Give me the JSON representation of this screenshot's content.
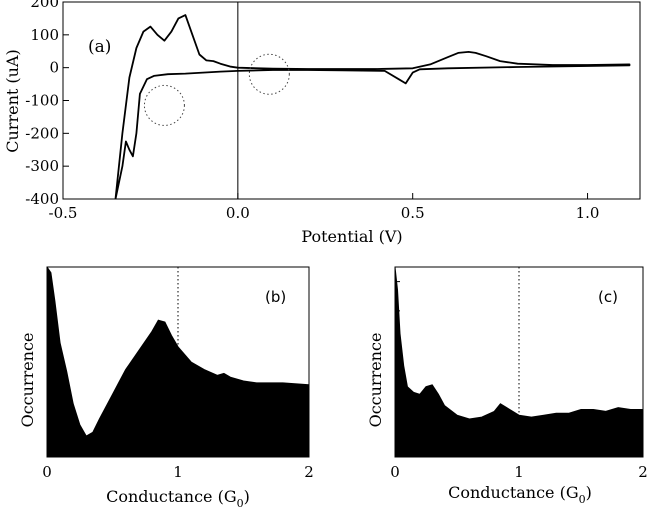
{
  "chart_data": [
    {
      "type": "line",
      "panel_label": "(a)",
      "xlabel": "Potential (V)",
      "ylabel": "Current (uA)",
      "xlim": [
        -0.5,
        1.15
      ],
      "ylim": [
        -400,
        200
      ],
      "xticks": [
        -0.5,
        0.0,
        0.5,
        1.0
      ],
      "xtick_labels": [
        "-0.5",
        "0.0",
        "0.5",
        "1.0"
      ],
      "yticks": [
        -400,
        -300,
        -200,
        -100,
        0,
        100,
        200
      ],
      "ytick_labels": [
        "-400",
        "-300",
        "-200",
        "-100",
        "0",
        "100",
        "200"
      ],
      "vertical_reference_line_x": 0.0,
      "dotted_circles": [
        {
          "x": -0.21,
          "y": -115
        },
        {
          "x": 0.09,
          "y": -20
        }
      ],
      "series": [
        {
          "x": [
            -0.35,
            -0.33,
            -0.31,
            -0.29,
            -0.27,
            -0.25,
            -0.23,
            -0.21,
            -0.19,
            -0.17,
            -0.15,
            -0.13,
            -0.11,
            -0.09,
            -0.07,
            -0.05,
            -0.02,
            0.0,
            0.1,
            0.2,
            0.3,
            0.4,
            0.5,
            0.55,
            0.6,
            0.63,
            0.66,
            0.68,
            0.71,
            0.75,
            0.8,
            0.9,
            1.0,
            1.12,
            1.12,
            1.0,
            0.8,
            0.6,
            0.52,
            0.5,
            0.48,
            0.46,
            0.42,
            0.3,
            0.2,
            0.1,
            0.0,
            -0.05,
            -0.1,
            -0.15,
            -0.2,
            -0.24,
            -0.26,
            -0.28,
            -0.29,
            -0.3,
            -0.31,
            -0.32,
            -0.33,
            -0.35
          ],
          "y": [
            -400,
            -200,
            -30,
            60,
            110,
            125,
            100,
            82,
            110,
            150,
            160,
            100,
            40,
            22,
            20,
            12,
            3,
            0,
            -3,
            -4,
            -4,
            -4,
            -2,
            10,
            32,
            45,
            48,
            45,
            35,
            20,
            12,
            8,
            8,
            10,
            7,
            5,
            2,
            -2,
            -5,
            -15,
            -48,
            -35,
            -10,
            -8,
            -7,
            -7,
            -10,
            -12,
            -15,
            -18,
            -20,
            -25,
            -35,
            -80,
            -200,
            -270,
            -250,
            -225,
            -300,
            -400
          ]
        }
      ]
    },
    {
      "type": "area",
      "panel_label": "(b)",
      "xlabel": "Conductance (G",
      "xlabel_sub": "0",
      "xlabel_end": ")",
      "ylabel": "Occurrence",
      "xlim": [
        0,
        2
      ],
      "xticks": [
        0,
        1,
        2
      ],
      "xtick_labels": [
        "0",
        "1",
        "2"
      ],
      "dotted_line_x": 1,
      "x": [
        0.0,
        0.03,
        0.06,
        0.1,
        0.15,
        0.2,
        0.25,
        0.3,
        0.35,
        0.4,
        0.5,
        0.6,
        0.7,
        0.8,
        0.85,
        0.9,
        0.95,
        1.0,
        1.1,
        1.2,
        1.3,
        1.35,
        1.4,
        1.5,
        1.6,
        1.8,
        2.0
      ],
      "y": [
        1.0,
        0.97,
        0.82,
        0.6,
        0.45,
        0.28,
        0.17,
        0.11,
        0.13,
        0.2,
        0.33,
        0.46,
        0.56,
        0.66,
        0.72,
        0.71,
        0.64,
        0.58,
        0.5,
        0.46,
        0.43,
        0.44,
        0.42,
        0.4,
        0.39,
        0.39,
        0.38
      ]
    },
    {
      "type": "area",
      "panel_label": "(c)",
      "xlabel": "Conductance (G",
      "xlabel_sub": "0",
      "xlabel_end": ")",
      "ylabel": "Occurrence",
      "xlim": [
        0,
        2
      ],
      "xticks": [
        0,
        1,
        2
      ],
      "xtick_labels": [
        "0",
        "1",
        "2"
      ],
      "dotted_line_x": 1,
      "x": [
        0.0,
        0.02,
        0.04,
        0.07,
        0.1,
        0.15,
        0.2,
        0.25,
        0.3,
        0.35,
        0.4,
        0.5,
        0.6,
        0.7,
        0.8,
        0.85,
        0.9,
        1.0,
        1.1,
        1.2,
        1.3,
        1.4,
        1.5,
        1.6,
        1.7,
        1.8,
        1.9,
        2.0
      ],
      "y": [
        1.0,
        0.88,
        0.65,
        0.48,
        0.37,
        0.34,
        0.33,
        0.37,
        0.38,
        0.33,
        0.27,
        0.22,
        0.2,
        0.21,
        0.24,
        0.28,
        0.26,
        0.22,
        0.21,
        0.22,
        0.23,
        0.23,
        0.25,
        0.25,
        0.24,
        0.26,
        0.25,
        0.25
      ]
    }
  ]
}
